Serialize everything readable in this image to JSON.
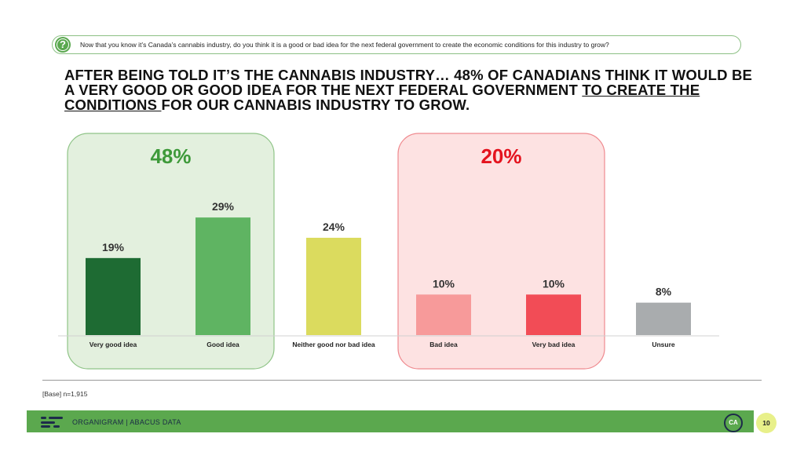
{
  "question": {
    "icon": "question-icon",
    "text": "Now that you know it’s Canada’s cannabis industry, do you think it is a good or bad idea for the next federal government to create the economic conditions for this industry to grow?"
  },
  "headline": {
    "part1": "AFTER BEING TOLD IT’S THE CANNABIS INDUSTRY… 48% OF CANADIANS THINK IT WOULD BE A VERY GOOD OR GOOD IDEA FOR THE NEXT FEDERAL GOVERNMENT ",
    "underlined": "TO CREATE THE CONDITIONS ",
    "part2": "FOR OUR CANNABIS INDUSTRY TO GROW."
  },
  "chart_data": {
    "type": "bar",
    "categories": [
      "Very good idea",
      "Good idea",
      "Neither good nor bad idea",
      "Bad idea",
      "Very bad idea",
      "Unsure"
    ],
    "values": [
      19,
      29,
      24,
      10,
      10,
      8
    ],
    "value_labels": [
      "19%",
      "29%",
      "24%",
      "10%",
      "10%",
      "8%"
    ],
    "colors": [
      "#1e6b33",
      "#5fb462",
      "#dbdb5e",
      "#f79a9a",
      "#f24c56",
      "#a9acae"
    ],
    "groups": [
      {
        "label": "48%",
        "color": "#3e9a3a",
        "fill": "#e3f0de",
        "border": "#8fc487",
        "members": [
          0,
          1
        ]
      },
      {
        "label": "20%",
        "color": "#e4141f",
        "fill": "#fde2e2",
        "border": "#ef8a8f",
        "members": [
          3,
          4
        ]
      }
    ],
    "ylim": [
      0,
      30
    ]
  },
  "base": "[Base] n=1,915",
  "footer": {
    "brand": "ORGANIGRAM  |  ABACUS DATA",
    "logo_text": "CA",
    "page": "10"
  }
}
